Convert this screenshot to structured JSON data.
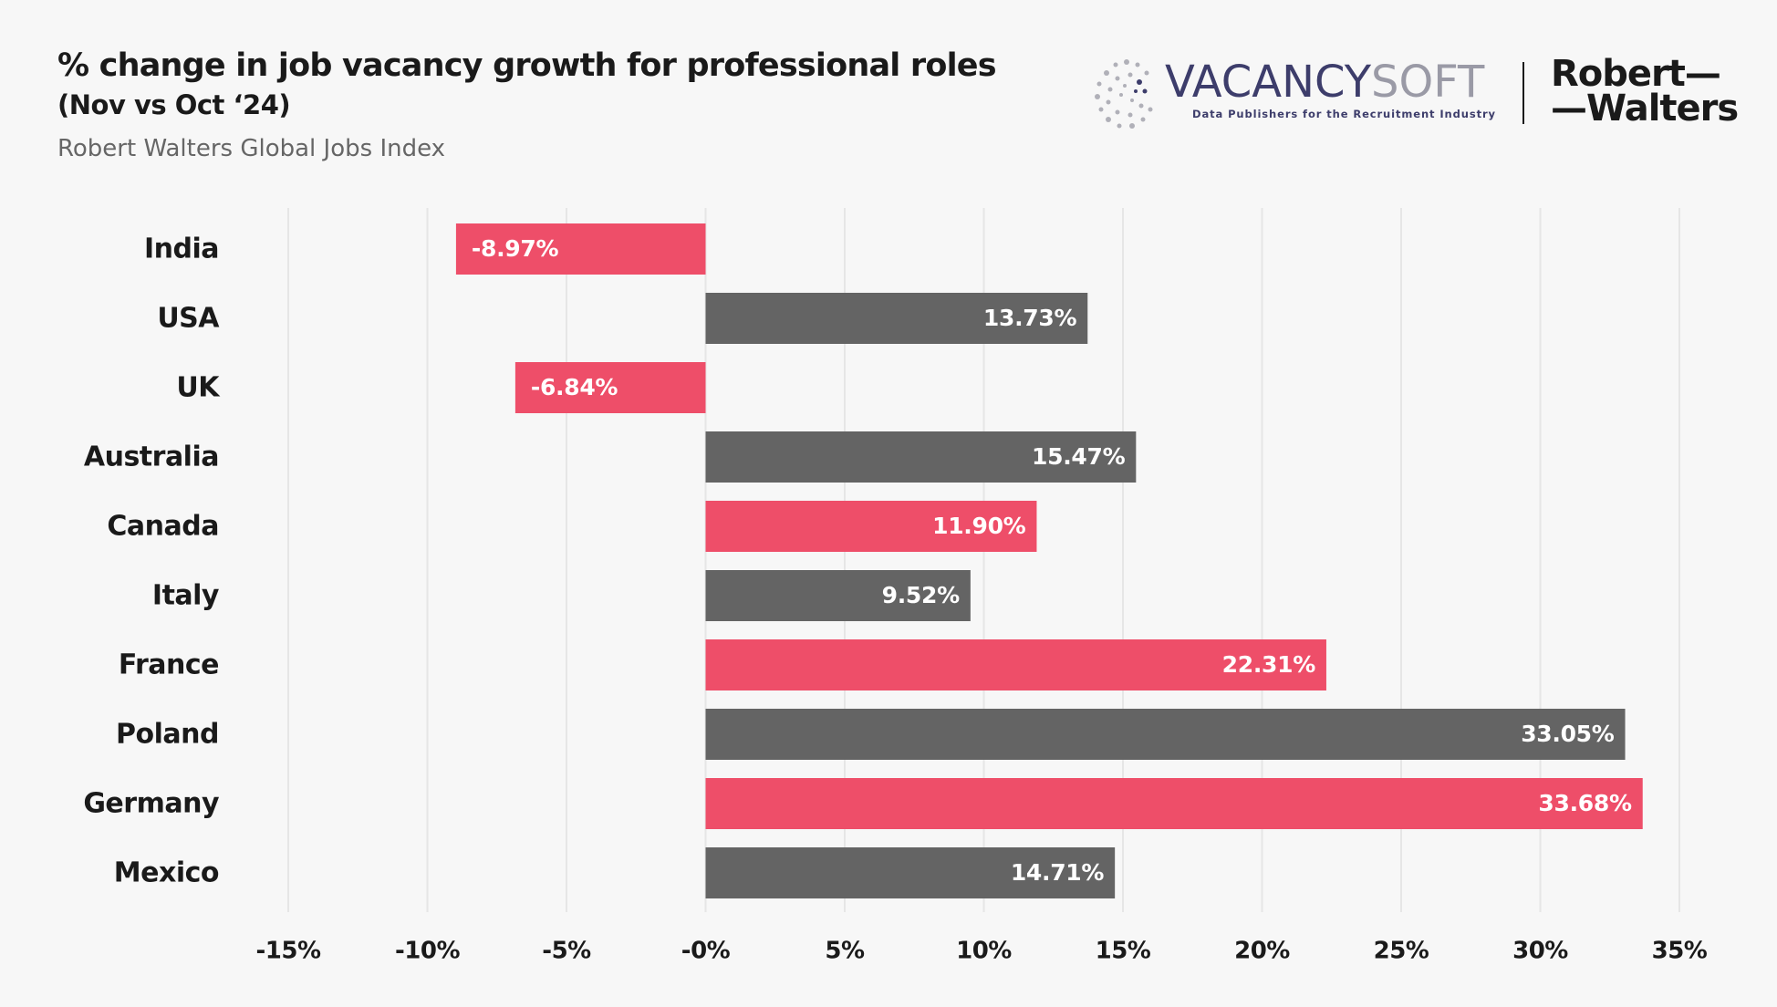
{
  "header": {
    "title": "% change in job vacancy growth for professional roles",
    "subtitle": "(Nov vs Oct ‘24)",
    "source": "Robert Walters Global Jobs Index"
  },
  "logos": {
    "vacancysoft": {
      "name_part1": "VACANCY",
      "name_part2": "SOFT",
      "tagline": "Data Publishers for the Recruitment Industry"
    },
    "robert_walters": {
      "line1": "Robert—",
      "line2": "—Walters"
    }
  },
  "colors": {
    "background": "#f7f7f7",
    "pink": "#ee4e69",
    "gray": "#646464",
    "grid": "#e6e6e6"
  },
  "chart_data": {
    "type": "bar",
    "orientation": "horizontal",
    "categories": [
      "India",
      "USA",
      "UK",
      "Australia",
      "Canada",
      "Italy",
      "France",
      "Poland",
      "Germany",
      "Mexico"
    ],
    "values": [
      -8.97,
      13.73,
      -6.84,
      15.47,
      11.9,
      9.52,
      22.31,
      33.05,
      33.68,
      14.71
    ],
    "data_labels": [
      "-8.97%",
      "13.73%",
      "-6.84%",
      "15.47%",
      "11.90%",
      "9.52%",
      "22.31%",
      "33.05%",
      "33.68%",
      "14.71%"
    ],
    "bar_colors": [
      "pink",
      "gray",
      "pink",
      "gray",
      "pink",
      "gray",
      "pink",
      "gray",
      "pink",
      "gray"
    ],
    "xlim": [
      -15,
      35
    ],
    "x_ticks": [
      -15,
      -10,
      -5,
      0,
      5,
      10,
      15,
      20,
      25,
      30,
      35
    ],
    "x_tick_labels": [
      "-15%",
      "-10%",
      "-5%",
      "-0%",
      "5%",
      "10%",
      "15%",
      "20%",
      "25%",
      "30%",
      "35%"
    ],
    "grid": "vertical",
    "legend": "none"
  }
}
